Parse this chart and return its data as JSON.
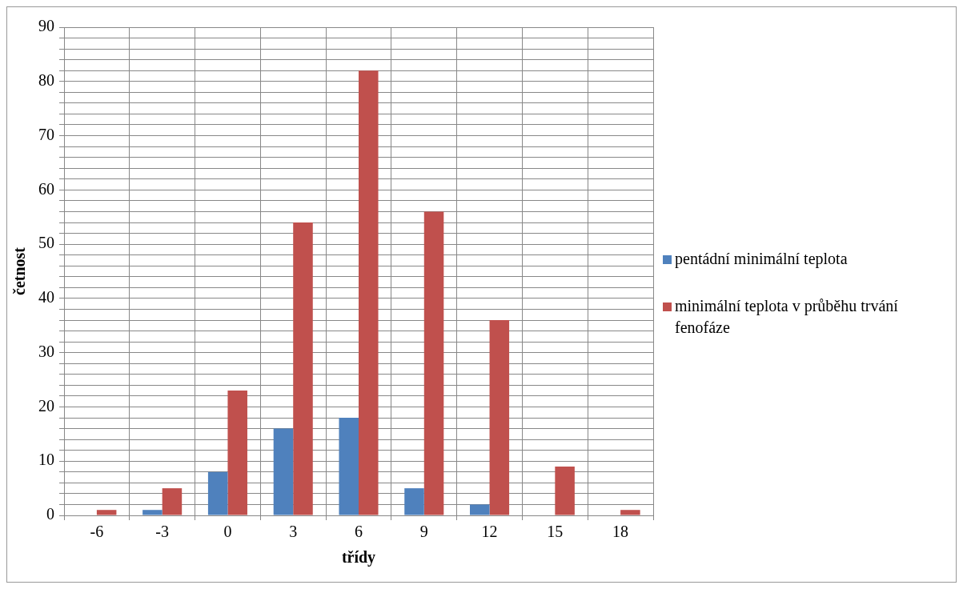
{
  "chart_data": {
    "type": "bar",
    "xlabel": "třídy",
    "ylabel": "četnost",
    "categories": [
      "-6",
      "-3",
      "0",
      "3",
      "6",
      "9",
      "12",
      "15",
      "18"
    ],
    "series": [
      {
        "name": "pentádní minimální teplota",
        "color": "#4f81bd",
        "values": [
          0,
          1,
          8,
          16,
          18,
          5,
          2,
          0,
          0
        ]
      },
      {
        "name": "minimální teplota v průběhu trvání fenofáze",
        "color": "#c0504d",
        "values": [
          1,
          5,
          23,
          54,
          82,
          56,
          36,
          9,
          1
        ]
      }
    ],
    "ylim": [
      0,
      90
    ],
    "yticks": [
      0,
      {
        "value": 2,
        "label": null
      },
      {
        "value": 4,
        "label": null
      },
      {
        "value": 6,
        "label": null
      },
      {
        "value": 8,
        "label": null
      },
      10,
      {
        "value": 12,
        "label": null
      },
      {
        "value": 14,
        "label": null
      },
      {
        "value": 16,
        "label": null
      },
      {
        "value": 18,
        "label": null
      },
      20,
      {
        "value": 22,
        "label": null
      },
      {
        "value": 24,
        "label": null
      },
      {
        "value": 26,
        "label": null
      },
      {
        "value": 28,
        "label": null
      },
      30,
      {
        "value": 32,
        "label": null
      },
      {
        "value": 34,
        "label": null
      },
      {
        "value": 36,
        "label": null
      },
      {
        "value": 38,
        "label": null
      },
      40,
      {
        "value": 42,
        "label": null
      },
      {
        "value": 44,
        "label": null
      },
      {
        "value": 46,
        "label": null
      },
      {
        "value": 48,
        "label": null
      },
      50,
      {
        "value": 52,
        "label": null
      },
      {
        "value": 54,
        "label": null
      },
      {
        "value": 56,
        "label": null
      },
      {
        "value": 58,
        "label": null
      },
      60,
      {
        "value": 62,
        "label": null
      },
      {
        "value": 64,
        "label": null
      },
      {
        "value": 66,
        "label": null
      },
      {
        "value": 68,
        "label": null
      },
      70,
      {
        "value": 72,
        "label": null
      },
      {
        "value": 74,
        "label": null
      },
      {
        "value": 76,
        "label": null
      },
      {
        "value": 78,
        "label": null
      },
      80,
      {
        "value": 82,
        "label": null
      },
      {
        "value": 84,
        "label": null
      },
      {
        "value": 86,
        "label": null
      },
      {
        "value": 88,
        "label": null
      },
      90
    ],
    "grid": true,
    "legend": "right"
  }
}
